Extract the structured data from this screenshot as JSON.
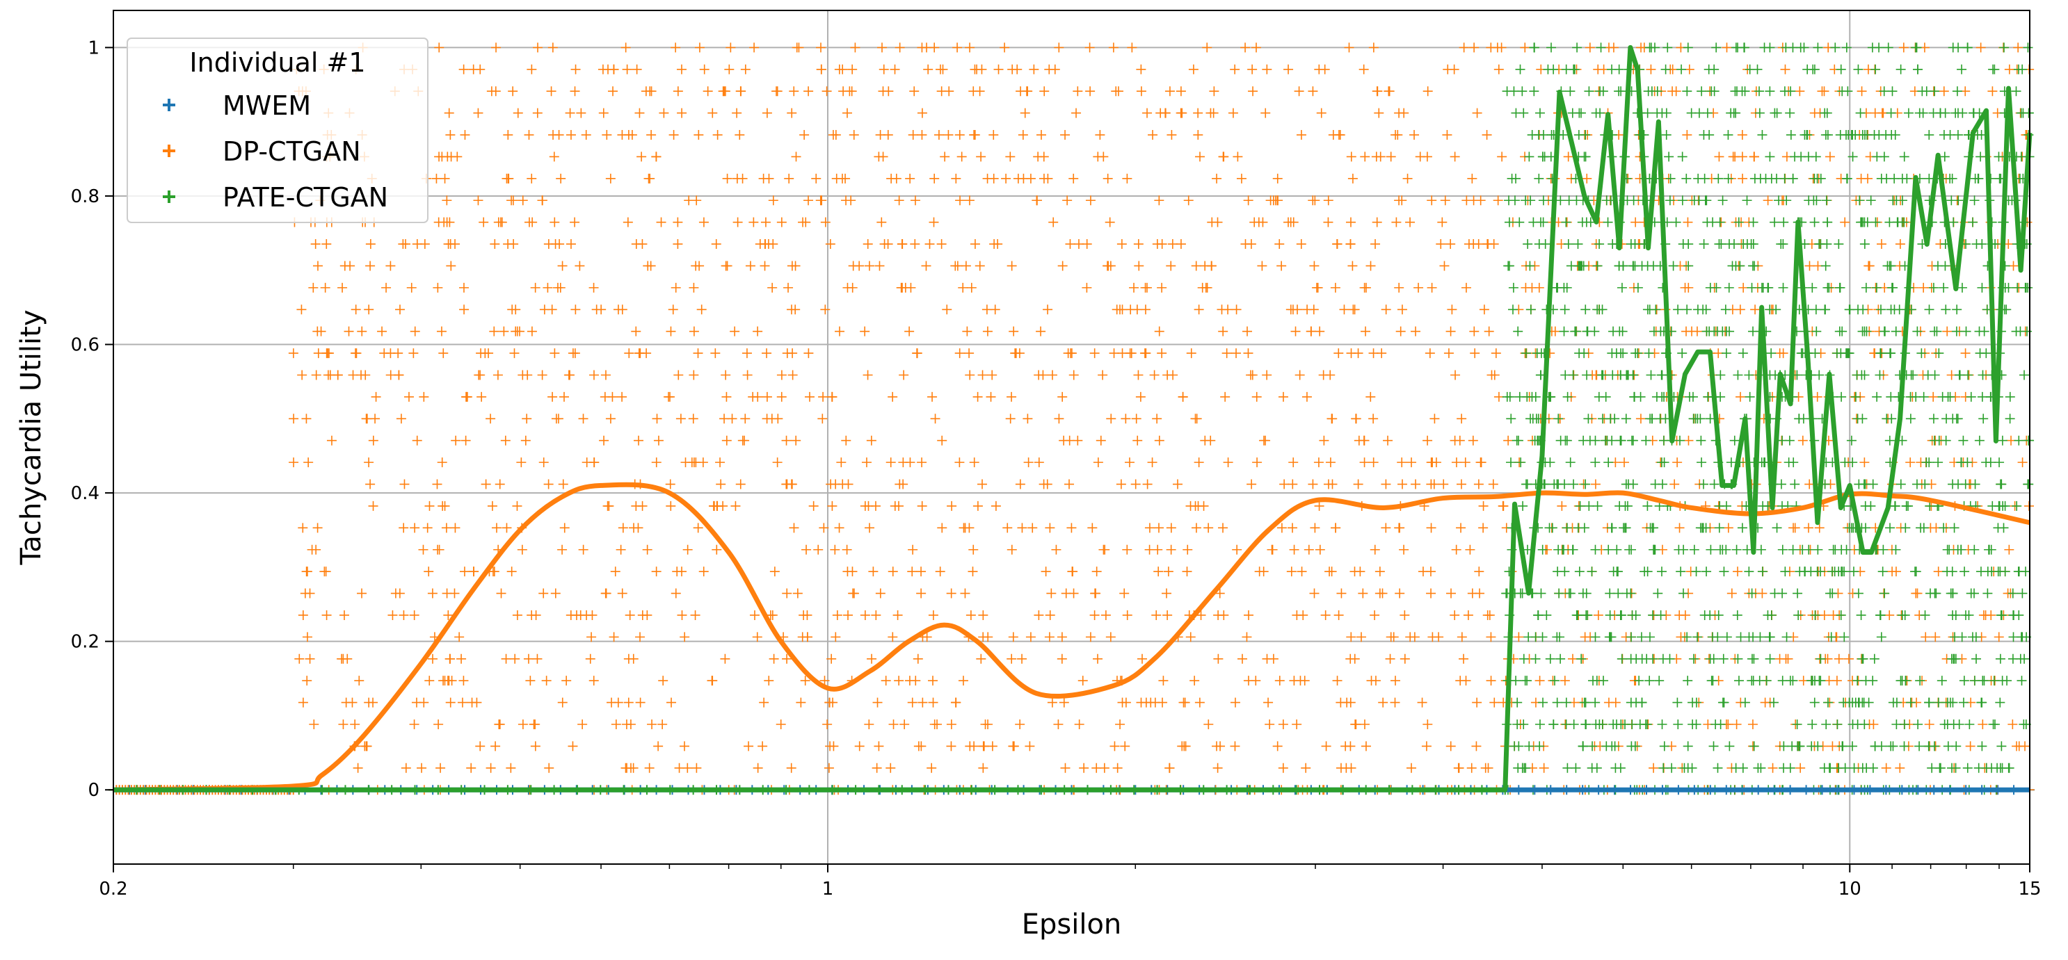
{
  "chart_data": {
    "type": "scatter",
    "title": "",
    "xlabel": "Epsilon",
    "ylabel": "Tachycardia Utility",
    "xscale": "log",
    "xlim": [
      0.2,
      15
    ],
    "ylim": [
      -0.1,
      1.05
    ],
    "x_ticks": [
      0.2,
      1,
      10,
      15
    ],
    "x_tick_labels": [
      "0.2",
      "1",
      "10",
      "15"
    ],
    "y_ticks": [
      0,
      0.2,
      0.4,
      0.6,
      0.8,
      1
    ],
    "y_tick_labels": [
      "0",
      "0.2",
      "0.4",
      "0.6",
      "0.8",
      "1"
    ],
    "grid": true,
    "legend": {
      "title": "Individual #1",
      "placement": "top-left",
      "entries": [
        "MWEM",
        "DP-CTGAN",
        "PATE-CTGAN"
      ]
    },
    "series": [
      {
        "name": "MWEM",
        "color": "#1f77b4",
        "marker": "plus",
        "points_description_free": true,
        "scatter_rule": {
          "x_from": 0.2,
          "x_to": 15,
          "y": 0
        },
        "trend": {
          "x": [
            0.2,
            1,
            5.5,
            10,
            15
          ],
          "y": [
            0,
            0,
            0,
            0,
            0
          ]
        }
      },
      {
        "name": "DP-CTGAN",
        "color": "#ff7f0e",
        "marker": "plus",
        "scatter_rule": {
          "x_from": 0.3,
          "x_to": 15,
          "y_from": 0,
          "y_to": 1
        },
        "trend": {
          "x": [
            0.2,
            0.3,
            0.32,
            0.35,
            0.4,
            0.45,
            0.5,
            0.55,
            0.6,
            0.7,
            0.8,
            0.9,
            1.0,
            1.1,
            1.2,
            1.3,
            1.4,
            1.6,
            1.9,
            2.1,
            2.4,
            2.7,
            3.0,
            3.5,
            4.0,
            4.5,
            5.0,
            5.5,
            6.0,
            6.5,
            7.0,
            8.0,
            9.0,
            10.0,
            11.0,
            12.0,
            15.0
          ],
          "y": [
            0,
            0.005,
            0.02,
            0.07,
            0.17,
            0.27,
            0.35,
            0.395,
            0.41,
            0.4,
            0.32,
            0.2,
            0.137,
            0.16,
            0.2,
            0.222,
            0.2,
            0.13,
            0.14,
            0.18,
            0.27,
            0.35,
            0.39,
            0.38,
            0.393,
            0.395,
            0.4,
            0.398,
            0.4,
            0.39,
            0.38,
            0.372,
            0.38,
            0.398,
            0.396,
            0.39,
            0.36
          ]
        }
      },
      {
        "name": "PATE-CTGAN",
        "color": "#2ca02c",
        "marker": "plus",
        "scatter_rule": {
          "x_from": 4.6,
          "x_to": 15,
          "y_from": 0,
          "y_to": 1
        },
        "trend": {
          "x": [
            0.2,
            4.6,
            4.7,
            4.85,
            5.0,
            5.2,
            5.5,
            5.65,
            5.8,
            5.95,
            6.1,
            6.2,
            6.35,
            6.5,
            6.7,
            6.9,
            7.1,
            7.3,
            7.5,
            7.7,
            7.9,
            8.05,
            8.2,
            8.4,
            8.55,
            8.75,
            8.9,
            9.1,
            9.3,
            9.55,
            9.8,
            10.0,
            10.3,
            10.5,
            10.9,
            11.2,
            11.6,
            11.9,
            12.2,
            12.7,
            13.2,
            13.6,
            13.9,
            14.3,
            14.7,
            15.0
          ],
          "y": [
            0,
            0,
            0.385,
            0.265,
            0.45,
            0.94,
            0.8,
            0.765,
            0.91,
            0.73,
            1.0,
            0.97,
            0.73,
            0.9,
            0.47,
            0.56,
            0.59,
            0.59,
            0.41,
            0.41,
            0.5,
            0.32,
            0.65,
            0.38,
            0.56,
            0.52,
            0.765,
            0.58,
            0.36,
            0.56,
            0.38,
            0.41,
            0.32,
            0.32,
            0.38,
            0.5,
            0.825,
            0.735,
            0.855,
            0.675,
            0.885,
            0.915,
            0.47,
            0.945,
            0.7,
            0.885
          ]
        }
      }
    ]
  }
}
